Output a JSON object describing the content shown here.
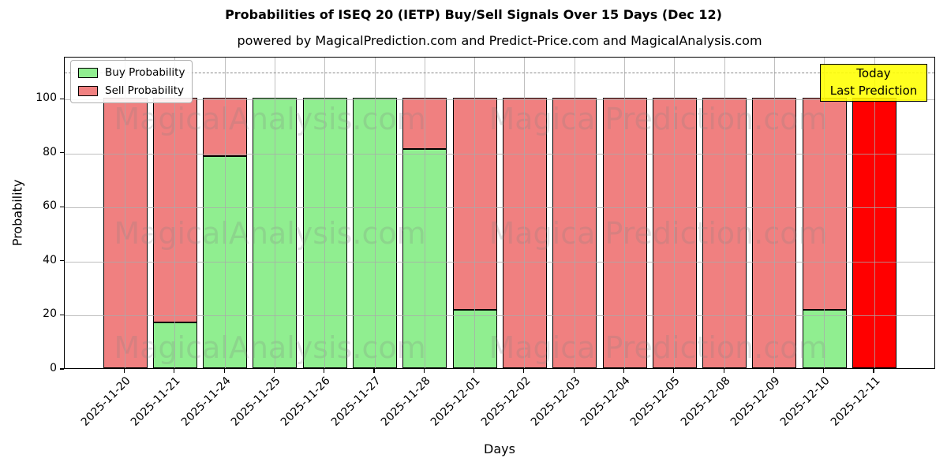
{
  "figure": {
    "title": "Probabilities of ISEQ 20 (IETP) Buy/Sell Signals Over 15 Days (Dec 12)",
    "subtitle": "powered by MagicalPrediction.com and Predict-Price.com and MagicalAnalysis.com"
  },
  "watermarks": {
    "texts": [
      "MagicalAnalysis.com",
      "Magica Prediction.com"
    ]
  },
  "chart_data": {
    "type": "bar",
    "stacked": true,
    "title": "Probabilities of ISEQ 20 (IETP) Buy/Sell Signals Over 15 Days (Dec 12)",
    "subtitle": "powered by MagicalPrediction.com and Predict-Price.com and MagicalAnalysis.com",
    "xlabel": "Days",
    "ylabel": "Probability",
    "categories": [
      "2025-11-20",
      "2025-11-21",
      "2025-11-24",
      "2025-11-25",
      "2025-11-26",
      "2025-11-27",
      "2025-11-28",
      "2025-12-01",
      "2025-12-02",
      "2025-12-03",
      "2025-12-04",
      "2025-12-05",
      "2025-12-08",
      "2025-12-09",
      "2025-12-10",
      "2025-12-11"
    ],
    "series": [
      {
        "name": "Buy Probability",
        "color": "#90EE90",
        "values": [
          0,
          17,
          78.5,
          100,
          100,
          100,
          81,
          21.5,
          0,
          0,
          0,
          0,
          0,
          0,
          21.5,
          0
        ]
      },
      {
        "name": "Sell Probability",
        "color": "#F08080",
        "values": [
          100,
          83,
          21.5,
          0,
          0,
          0,
          19,
          78.5,
          100,
          100,
          100,
          100,
          100,
          100,
          78.5,
          0
        ]
      },
      {
        "name": "Last Prediction (red)",
        "color": "#FF0000",
        "values": [
          0,
          0,
          0,
          0,
          0,
          0,
          0,
          0,
          0,
          0,
          0,
          0,
          0,
          0,
          0,
          100
        ]
      }
    ],
    "ylim": [
      0,
      115
    ],
    "yticks": [
      0,
      20,
      40,
      60,
      80,
      100
    ],
    "dashed_line_y": 110,
    "grid": true,
    "legend_position": "upper left",
    "annotation": {
      "line1": "Today",
      "line2": "Last Prediction",
      "bg_color": "#FFFF00"
    },
    "bar_edge_color": "#000000"
  }
}
